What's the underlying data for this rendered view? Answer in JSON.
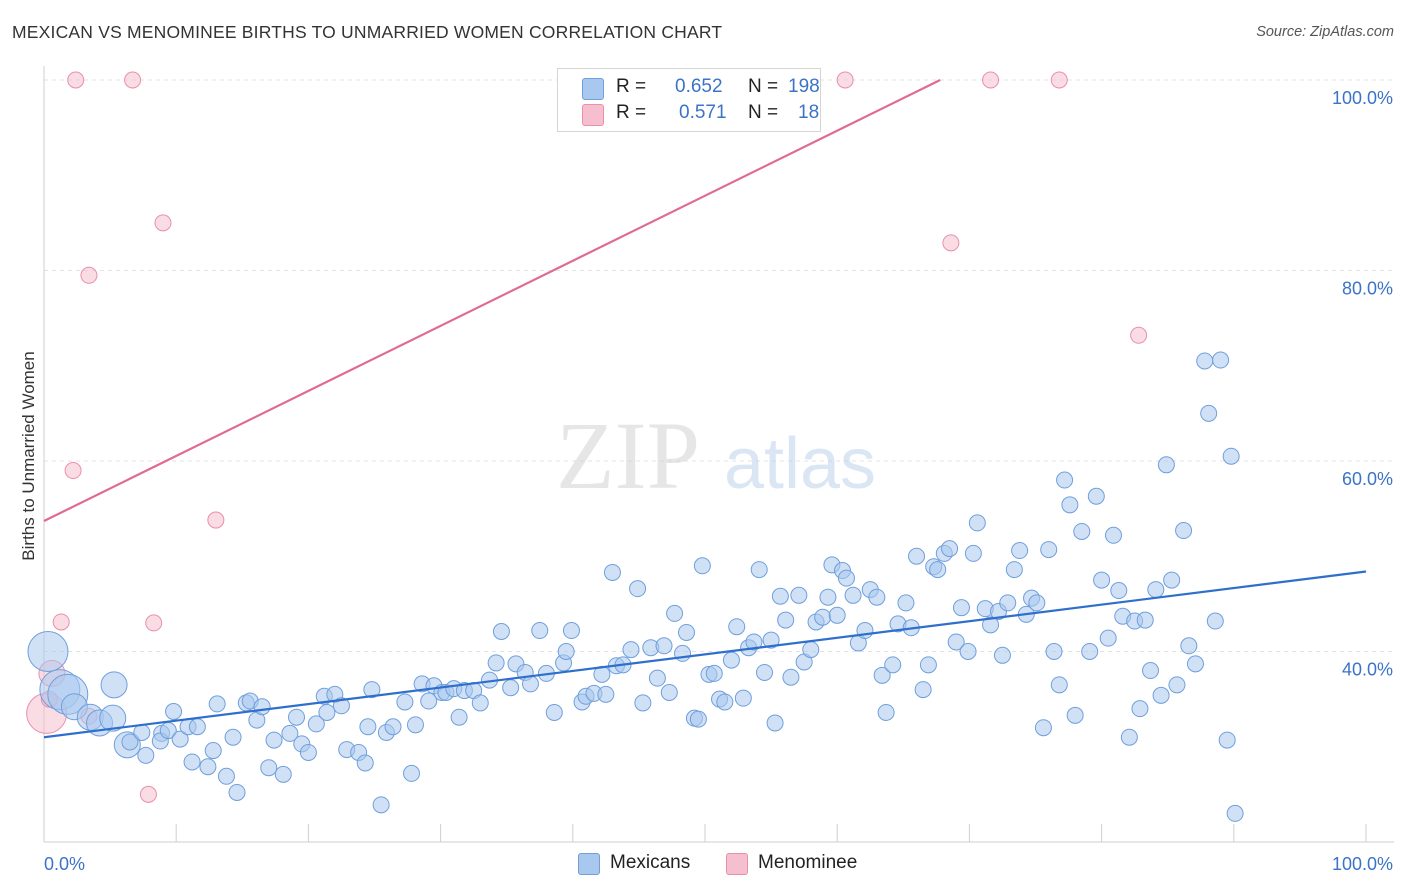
{
  "title": "MEXICAN VS MENOMINEE BIRTHS TO UNMARRIED WOMEN CORRELATION CHART",
  "source": "Source: ZipAtlas.com",
  "watermark": {
    "zip": "ZIP",
    "atlas": "atlas"
  },
  "colors": {
    "blue_fill": "#a9c8ef",
    "blue_stroke": "#6f9fdc",
    "blue_line": "#2f6fcc",
    "pink_fill": "#f6bfd0",
    "pink_stroke": "#e98fab",
    "pink_line": "#e06a92",
    "tick_text": "#3b73c8",
    "grid": "#e3e3e3"
  },
  "legend": {
    "rows": [
      {
        "r_label": "R =",
        "r_value": "0.652",
        "n_label": "N =",
        "n_value": "198"
      },
      {
        "r_label": "R =",
        "r_value": "0.571",
        "n_label": "N =",
        "n_value": "18"
      }
    ]
  },
  "bottom_legend": {
    "series1": "Mexicans",
    "series2": "Menominee"
  },
  "chart_data": {
    "type": "scatter",
    "title": "MEXICAN VS MENOMINEE BIRTHS TO UNMARRIED WOMEN CORRELATION CHART",
    "xlabel": "",
    "ylabel": "Births to Unmarried Women",
    "xlim": [
      0,
      100
    ],
    "ylim": [
      20,
      100
    ],
    "x_tick_labels": [
      "0.0%",
      "100.0%"
    ],
    "y_ticks": [
      40,
      60,
      80,
      100
    ],
    "y_tick_labels": [
      "40.0%",
      "60.0%",
      "80.0%",
      "100.0%"
    ],
    "grid": true,
    "legend_position": "top-center",
    "series": [
      {
        "name": "Mexicans",
        "r": 0.652,
        "n": 198,
        "trend": {
          "x": [
            0,
            100
          ],
          "y": [
            31.0,
            48.4
          ]
        },
        "points": [
          [
            0.3,
            40.0,
            3
          ],
          [
            1.2,
            36.0,
            3
          ],
          [
            1.8,
            35.5,
            3
          ],
          [
            2.3,
            34.2,
            2
          ],
          [
            3.5,
            33.1,
            2
          ],
          [
            4.2,
            32.5,
            2
          ],
          [
            5.2,
            33.0,
            2
          ],
          [
            5.3,
            36.5,
            2
          ],
          [
            6.3,
            30.2,
            2
          ],
          [
            6.5,
            30.5,
            1
          ],
          [
            7.4,
            31.5,
            1
          ],
          [
            7.7,
            29.1,
            1
          ],
          [
            8.9,
            31.4,
            1
          ],
          [
            8.8,
            30.6,
            1
          ],
          [
            9.4,
            31.7,
            1
          ],
          [
            9.8,
            33.7,
            1
          ],
          [
            10.3,
            30.8,
            1
          ],
          [
            10.9,
            32.1,
            1
          ],
          [
            11.2,
            28.4,
            1
          ],
          [
            11.6,
            32.1,
            1
          ],
          [
            12.4,
            27.9,
            1
          ],
          [
            12.8,
            29.6,
            1
          ],
          [
            13.1,
            34.5,
            1
          ],
          [
            13.8,
            26.9,
            1
          ],
          [
            14.3,
            31.0,
            1
          ],
          [
            14.6,
            25.2,
            1
          ],
          [
            15.3,
            34.6,
            1
          ],
          [
            15.6,
            34.8,
            1
          ],
          [
            16.1,
            32.8,
            1
          ],
          [
            16.5,
            34.2,
            1
          ],
          [
            17.0,
            27.8,
            1
          ],
          [
            17.4,
            30.7,
            1
          ],
          [
            18.1,
            27.1,
            1
          ],
          [
            18.6,
            31.4,
            1
          ],
          [
            19.1,
            33.1,
            1
          ],
          [
            19.5,
            30.3,
            1
          ],
          [
            20.0,
            29.4,
            1
          ],
          [
            20.6,
            32.4,
            1
          ],
          [
            21.2,
            35.3,
            1
          ],
          [
            21.4,
            33.6,
            1
          ],
          [
            22.0,
            35.5,
            1
          ],
          [
            22.5,
            34.3,
            1
          ],
          [
            22.9,
            29.7,
            1
          ],
          [
            23.8,
            29.4,
            1
          ],
          [
            24.3,
            28.3,
            1
          ],
          [
            24.5,
            32.1,
            1
          ],
          [
            24.8,
            36.0,
            1
          ],
          [
            25.5,
            23.9,
            1
          ],
          [
            25.9,
            31.5,
            1
          ],
          [
            26.4,
            32.1,
            1
          ],
          [
            27.3,
            34.7,
            1
          ],
          [
            27.8,
            27.2,
            1
          ],
          [
            28.1,
            32.3,
            1
          ],
          [
            28.6,
            36.6,
            1
          ],
          [
            29.1,
            34.8,
            1
          ],
          [
            29.5,
            36.4,
            1
          ],
          [
            30.1,
            35.7,
            1
          ],
          [
            30.4,
            35.7,
            1
          ],
          [
            31.0,
            36.1,
            1
          ],
          [
            31.4,
            33.1,
            1
          ],
          [
            31.8,
            35.9,
            1
          ],
          [
            32.5,
            35.9,
            1
          ],
          [
            33.0,
            34.6,
            1
          ],
          [
            33.7,
            37.0,
            1
          ],
          [
            34.2,
            38.8,
            1
          ],
          [
            34.6,
            42.1,
            1
          ],
          [
            35.3,
            36.2,
            1
          ],
          [
            35.7,
            38.7,
            1
          ],
          [
            36.4,
            37.8,
            1
          ],
          [
            36.8,
            36.6,
            1
          ],
          [
            37.5,
            42.2,
            1
          ],
          [
            38.0,
            37.7,
            1
          ],
          [
            38.6,
            33.6,
            1
          ],
          [
            39.3,
            38.8,
            1
          ],
          [
            39.5,
            40.0,
            1
          ],
          [
            39.9,
            42.2,
            1
          ],
          [
            40.7,
            34.7,
            1
          ],
          [
            41.0,
            35.3,
            1
          ],
          [
            41.6,
            35.6,
            1
          ],
          [
            42.2,
            37.6,
            1
          ],
          [
            42.5,
            35.5,
            1
          ],
          [
            43.0,
            48.3,
            1
          ],
          [
            43.3,
            38.5,
            1
          ],
          [
            43.8,
            38.6,
            1
          ],
          [
            44.4,
            40.2,
            1
          ],
          [
            44.9,
            46.6,
            1
          ],
          [
            45.3,
            34.6,
            1
          ],
          [
            45.9,
            40.4,
            1
          ],
          [
            46.4,
            37.2,
            1
          ],
          [
            46.9,
            40.6,
            1
          ],
          [
            47.3,
            35.7,
            1
          ],
          [
            47.7,
            44.0,
            1
          ],
          [
            48.3,
            39.8,
            1
          ],
          [
            48.6,
            42.0,
            1
          ],
          [
            49.2,
            33.0,
            1
          ],
          [
            49.5,
            32.9,
            1
          ],
          [
            49.8,
            49.0,
            1
          ],
          [
            50.3,
            37.6,
            1
          ],
          [
            50.7,
            37.7,
            1
          ],
          [
            51.1,
            35.0,
            1
          ],
          [
            51.5,
            34.7,
            1
          ],
          [
            52.0,
            39.1,
            1
          ],
          [
            52.4,
            42.6,
            1
          ],
          [
            52.9,
            35.1,
            1
          ],
          [
            53.3,
            40.4,
            1
          ],
          [
            53.7,
            41.0,
            1
          ],
          [
            54.1,
            48.6,
            1
          ],
          [
            54.5,
            37.8,
            1
          ],
          [
            55.0,
            41.2,
            1
          ],
          [
            55.3,
            32.5,
            1
          ],
          [
            55.7,
            45.8,
            1
          ],
          [
            56.1,
            43.3,
            1
          ],
          [
            56.5,
            37.3,
            1
          ],
          [
            57.1,
            45.9,
            1
          ],
          [
            57.5,
            38.9,
            1
          ],
          [
            58.0,
            40.2,
            1
          ],
          [
            58.4,
            43.1,
            1
          ],
          [
            58.9,
            43.6,
            1
          ],
          [
            59.3,
            45.7,
            1
          ],
          [
            59.6,
            49.1,
            1
          ],
          [
            60.0,
            43.8,
            1
          ],
          [
            60.4,
            48.5,
            1
          ],
          [
            60.7,
            47.7,
            1
          ],
          [
            61.2,
            45.9,
            1
          ],
          [
            61.6,
            40.9,
            1
          ],
          [
            62.1,
            42.2,
            1
          ],
          [
            62.5,
            46.5,
            1
          ],
          [
            63.0,
            45.7,
            1
          ],
          [
            63.4,
            37.5,
            1
          ],
          [
            63.7,
            33.6,
            1
          ],
          [
            64.2,
            38.6,
            1
          ],
          [
            64.6,
            42.9,
            1
          ],
          [
            65.2,
            45.1,
            1
          ],
          [
            65.6,
            42.5,
            1
          ],
          [
            66.0,
            50.0,
            1
          ],
          [
            66.5,
            36.0,
            1
          ],
          [
            66.9,
            38.6,
            1
          ],
          [
            67.3,
            48.9,
            1
          ],
          [
            67.6,
            48.6,
            1
          ],
          [
            68.1,
            50.3,
            1
          ],
          [
            68.5,
            50.8,
            1
          ],
          [
            69.0,
            41.0,
            1
          ],
          [
            69.4,
            44.6,
            1
          ],
          [
            69.9,
            40.0,
            1
          ],
          [
            70.3,
            50.3,
            1
          ],
          [
            70.6,
            53.5,
            1
          ],
          [
            71.2,
            44.5,
            1
          ],
          [
            71.6,
            42.8,
            1
          ],
          [
            72.2,
            44.2,
            1
          ],
          [
            72.5,
            39.6,
            1
          ],
          [
            72.9,
            45.1,
            1
          ],
          [
            73.4,
            48.6,
            1
          ],
          [
            73.8,
            50.6,
            1
          ],
          [
            74.3,
            43.9,
            1
          ],
          [
            74.7,
            45.6,
            1
          ],
          [
            75.1,
            45.1,
            1
          ],
          [
            75.6,
            32.0,
            1
          ],
          [
            76.0,
            50.7,
            1
          ],
          [
            76.4,
            40.0,
            1
          ],
          [
            76.8,
            36.5,
            1
          ],
          [
            77.2,
            58.0,
            1
          ],
          [
            77.6,
            55.4,
            1
          ],
          [
            78.0,
            33.3,
            1
          ],
          [
            78.5,
            52.6,
            1
          ],
          [
            79.1,
            40.0,
            1
          ],
          [
            79.6,
            56.3,
            1
          ],
          [
            80.0,
            47.5,
            1
          ],
          [
            80.5,
            41.4,
            1
          ],
          [
            80.9,
            52.2,
            1
          ],
          [
            81.3,
            46.4,
            1
          ],
          [
            81.6,
            43.7,
            1
          ],
          [
            82.1,
            31.0,
            1
          ],
          [
            82.5,
            43.2,
            1
          ],
          [
            82.9,
            34.0,
            1
          ],
          [
            83.3,
            43.3,
            1
          ],
          [
            83.7,
            38.0,
            1
          ],
          [
            84.1,
            46.5,
            1
          ],
          [
            84.5,
            35.4,
            1
          ],
          [
            84.9,
            59.6,
            1
          ],
          [
            85.3,
            47.5,
            1
          ],
          [
            85.7,
            36.5,
            1
          ],
          [
            86.2,
            52.7,
            1
          ],
          [
            86.6,
            40.6,
            1
          ],
          [
            87.1,
            38.7,
            1
          ],
          [
            87.8,
            70.5,
            1
          ],
          [
            88.1,
            65.0,
            1
          ],
          [
            88.6,
            43.2,
            1
          ],
          [
            89.0,
            70.6,
            1
          ],
          [
            89.5,
            30.7,
            1
          ],
          [
            89.8,
            60.5,
            1
          ],
          [
            90.1,
            23.0,
            1
          ]
        ]
      },
      {
        "name": "Menominee",
        "r": 0.571,
        "n": 18,
        "trend": {
          "x": [
            0,
            100
          ],
          "y": [
            53.7,
            122.0
          ]
        },
        "points": [
          [
            0.2,
            33.5,
            3
          ],
          [
            0.4,
            35.0,
            1
          ],
          [
            0.6,
            37.7,
            2
          ],
          [
            1.3,
            43.1,
            1
          ],
          [
            2.2,
            59.0,
            1
          ],
          [
            2.4,
            100.0,
            1
          ],
          [
            3.4,
            33.2,
            1
          ],
          [
            3.4,
            79.5,
            1
          ],
          [
            6.7,
            100.0,
            1
          ],
          [
            7.9,
            25.0,
            1
          ],
          [
            8.3,
            43.0,
            1
          ],
          [
            9.0,
            85.0,
            1
          ],
          [
            13.0,
            53.8,
            1
          ],
          [
            60.6,
            100.0,
            1
          ],
          [
            68.6,
            82.9,
            1
          ],
          [
            71.6,
            100.0,
            1
          ],
          [
            76.8,
            100.0,
            1
          ],
          [
            82.8,
            73.2,
            1
          ]
        ]
      }
    ]
  }
}
